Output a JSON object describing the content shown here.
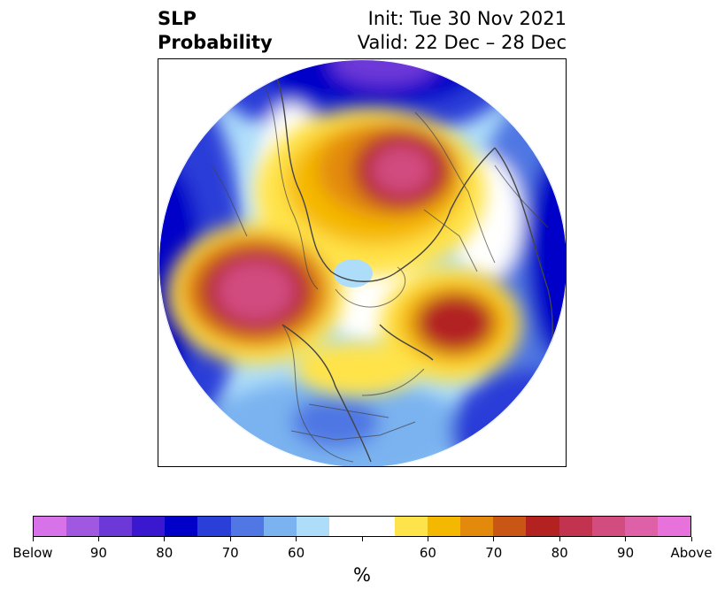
{
  "title": {
    "left_line1": "SLP",
    "left_line2": "Probability",
    "right_line1": "Init: Tue 30 Nov 2021",
    "right_line2": "Valid: 22 Dec – 28 Dec"
  },
  "colorbar": {
    "colors": [
      "#d872e8",
      "#a158e0",
      "#6d38d8",
      "#3a18d0",
      "#0000c8",
      "#2a3ed8",
      "#5077e3",
      "#7ab3f0",
      "#aeddfa",
      "#ffffff",
      "#ffffff",
      "#ffe34a",
      "#f5b800",
      "#e38a0c",
      "#c95615",
      "#b32220",
      "#c23350",
      "#d24c80",
      "#de61a8",
      "#e872dc"
    ],
    "labels": [
      "Below",
      "90",
      "80",
      "70",
      "60",
      "60",
      "70",
      "80",
      "90",
      "Above"
    ],
    "unit": "%"
  },
  "map": {
    "projection": "north-polar-stereographic",
    "colors": {
      "above_light": "#ffe34a",
      "above_mid": "#f5b800",
      "above_orange": "#e38a0c",
      "above_dark": "#b32220",
      "above_max": "#d24c80",
      "below_light": "#aeddfa",
      "below_mid": "#5077e3",
      "below_dark": "#0000c8",
      "below_max": "#6d38d8"
    }
  }
}
